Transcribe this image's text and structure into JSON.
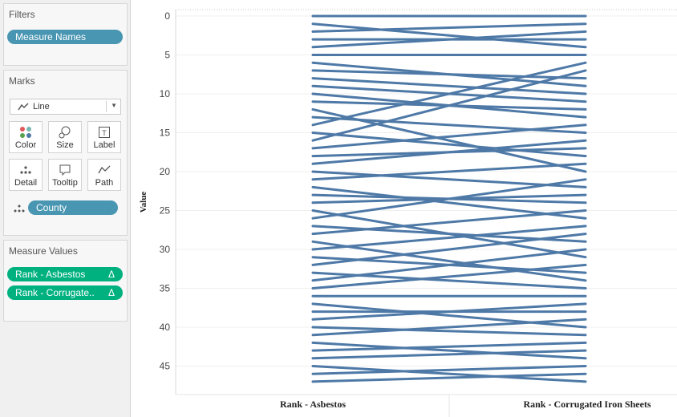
{
  "sidebar": {
    "filters": {
      "title": "Filters",
      "pills": [
        "Measure Names"
      ]
    },
    "marks": {
      "title": "Marks",
      "mark_type": "Line",
      "buttons": [
        {
          "label": "Color",
          "icon": "color-icon"
        },
        {
          "label": "Size",
          "icon": "size-icon"
        },
        {
          "label": "Label",
          "icon": "label-icon"
        },
        {
          "label": "Detail",
          "icon": "detail-icon"
        },
        {
          "label": "Tooltip",
          "icon": "tooltip-icon"
        },
        {
          "label": "Path",
          "icon": "path-icon"
        }
      ],
      "detail_pill": "County"
    },
    "measure_values": {
      "title": "Measure Values",
      "pills": [
        {
          "label": "Rank - Asbestos",
          "badge": "Δ"
        },
        {
          "label": "Rank - Corrugate..",
          "badge": "Δ"
        }
      ]
    }
  },
  "colors": {
    "line": "#4e79a7",
    "pill_blue": "#4996b2",
    "pill_green": "#00b180"
  },
  "chart_data": {
    "type": "line",
    "categories": [
      "Rank - Asbestos",
      "Rank - Corrugated Iron Sheets"
    ],
    "ylabel": "Value",
    "ylim": [
      0,
      49
    ],
    "y_reversed": true,
    "yticks": [
      0,
      5,
      10,
      15,
      20,
      25,
      30,
      35,
      40,
      45
    ],
    "grid": true,
    "series_pairs": [
      [
        0,
        0
      ],
      [
        1,
        4
      ],
      [
        2,
        1
      ],
      [
        3,
        3
      ],
      [
        4,
        2
      ],
      [
        5,
        5
      ],
      [
        6,
        9
      ],
      [
        7,
        8
      ],
      [
        8,
        10
      ],
      [
        9,
        11
      ],
      [
        10,
        13
      ],
      [
        11,
        12
      ],
      [
        12,
        20
      ],
      [
        13,
        15
      ],
      [
        14,
        6
      ],
      [
        15,
        18
      ],
      [
        16,
        7
      ],
      [
        17,
        14
      ],
      [
        18,
        17
      ],
      [
        19,
        16
      ],
      [
        20,
        22
      ],
      [
        21,
        19
      ],
      [
        22,
        26
      ],
      [
        23,
        24
      ],
      [
        24,
        23
      ],
      [
        25,
        31
      ],
      [
        26,
        21
      ],
      [
        27,
        29
      ],
      [
        28,
        25
      ],
      [
        29,
        34
      ],
      [
        30,
        27
      ],
      [
        31,
        33
      ],
      [
        32,
        28
      ],
      [
        33,
        35
      ],
      [
        34,
        30
      ],
      [
        35,
        32
      ],
      [
        36,
        36
      ],
      [
        37,
        40
      ],
      [
        38,
        38
      ],
      [
        39,
        37
      ],
      [
        40,
        41
      ],
      [
        41,
        39
      ],
      [
        42,
        44
      ],
      [
        43,
        42
      ],
      [
        44,
        43
      ],
      [
        45,
        47
      ],
      [
        46,
        45
      ],
      [
        47,
        46
      ]
    ]
  }
}
